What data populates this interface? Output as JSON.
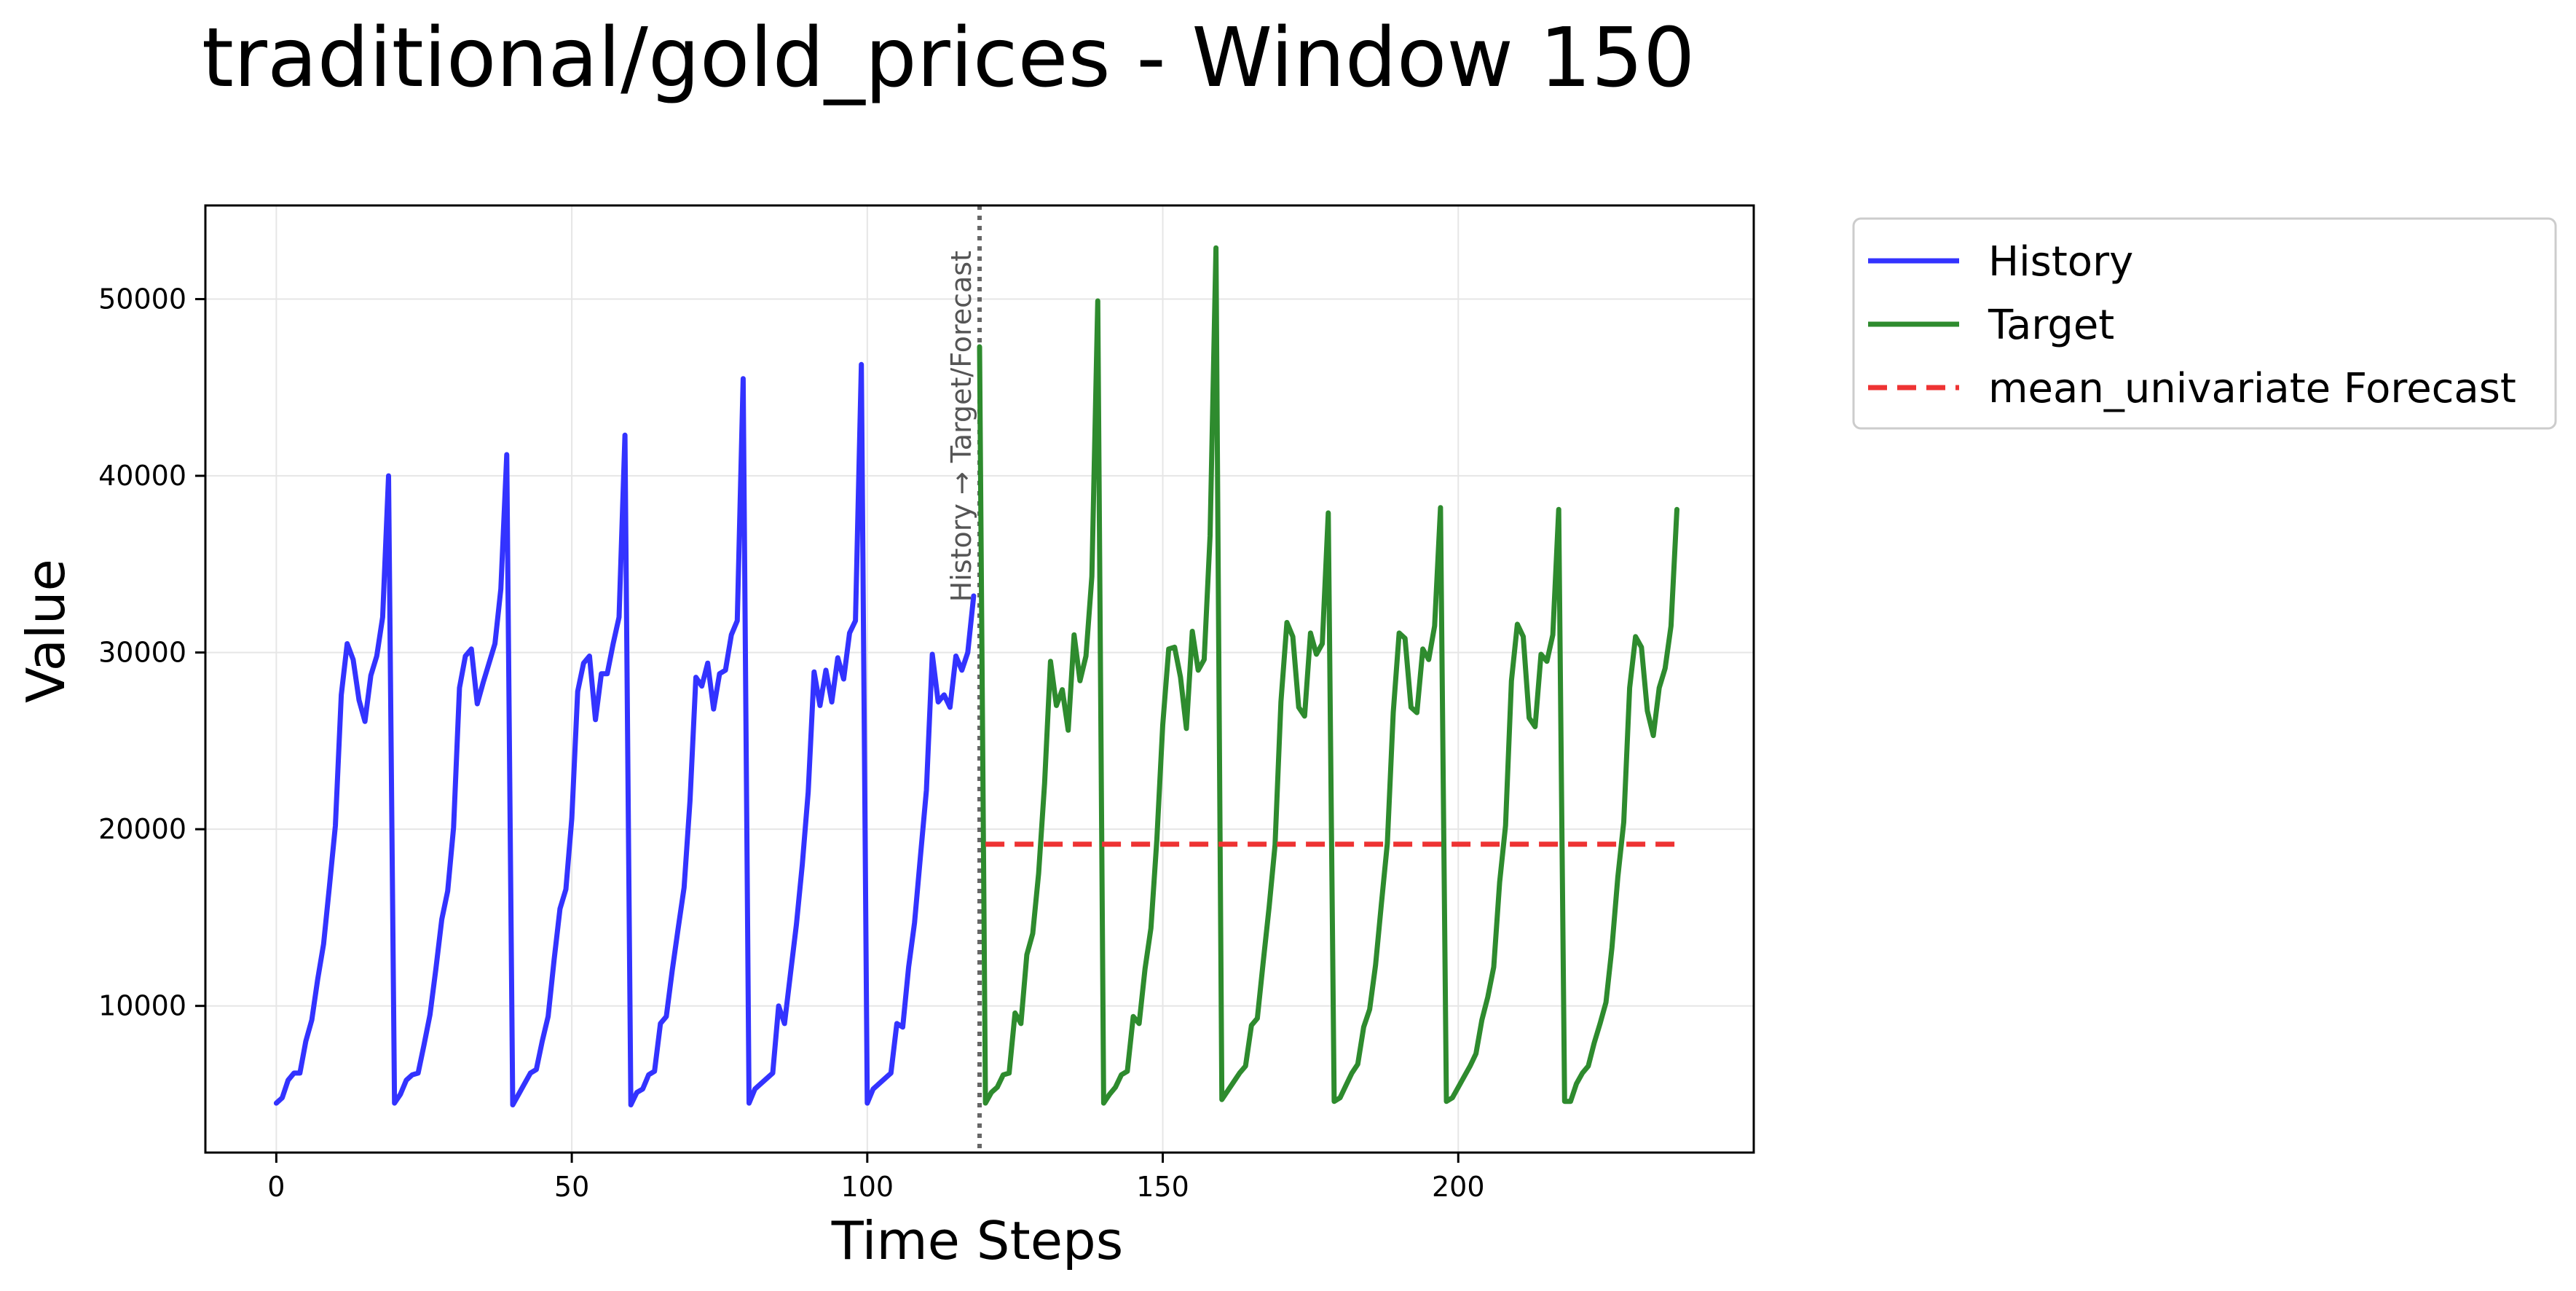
{
  "chart_data": {
    "type": "line",
    "title": "traditional/gold_prices - Window 150",
    "xlabel": "Time Steps",
    "ylabel": "Value",
    "xlim": [
      -12,
      250
    ],
    "ylim": [
      1700,
      55300
    ],
    "xticks": [
      0,
      50,
      100,
      150,
      200
    ],
    "yticks": [
      10000,
      20000,
      30000,
      40000,
      50000
    ],
    "grid": true,
    "legend_position": "outside right, top",
    "divider": {
      "x": 119,
      "label": "History → Target/Forecast",
      "color": "#666666"
    },
    "series": [
      {
        "name": "History",
        "color": "#3333ff",
        "x_start": 0,
        "values": [
          4500,
          4800,
          5800,
          6200,
          6200,
          8000,
          9200,
          11500,
          13500,
          16800,
          20200,
          27600,
          30500,
          29600,
          27300,
          26100,
          28700,
          29800,
          32000,
          40000,
          4500,
          5000,
          5800,
          6100,
          6200,
          7800,
          9500,
          12100,
          14900,
          16500,
          20100,
          28000,
          29800,
          30200,
          27100,
          28300,
          29400,
          30500,
          33600,
          41200,
          4400,
          5000,
          5600,
          6200,
          6400,
          8000,
          9400,
          12600,
          15500,
          16600,
          20600,
          27800,
          29400,
          29800,
          26200,
          28800,
          28800,
          30500,
          32000,
          42300,
          4400,
          5100,
          5300,
          6100,
          6300,
          9000,
          9400,
          12000,
          14400,
          16700,
          21600,
          28600,
          28100,
          29400,
          26800,
          28800,
          29000,
          31000,
          31800,
          45500,
          4500,
          5300,
          5600,
          5900,
          6200,
          10000,
          9000,
          11800,
          14600,
          18000,
          22100,
          28900,
          27000,
          29000,
          27200,
          29700,
          28500,
          31100,
          31800,
          46300,
          4500,
          5300,
          5600,
          5900,
          6200,
          9000,
          8800,
          12200,
          14700,
          18500,
          22200,
          29900,
          27200,
          27600,
          26900,
          29800,
          29000,
          30000,
          33200
        ]
      },
      {
        "name": "Target",
        "color": "#2e8b2e",
        "x_start": 119,
        "values": [
          47300,
          4500,
          5100,
          5400,
          6100,
          6200,
          9600,
          9000,
          12900,
          14100,
          17500,
          22600,
          29500,
          27000,
          27900,
          25600,
          31000,
          28400,
          29800,
          34300,
          49900,
          4500,
          5000,
          5400,
          6100,
          6300,
          9400,
          9000,
          12100,
          14400,
          19400,
          25900,
          30200,
          30300,
          28600,
          25700,
          31200,
          29000,
          29600,
          36600,
          52900,
          4700,
          5200,
          5700,
          6200,
          6600,
          8900,
          9300,
          12500,
          15600,
          19100,
          27200,
          31700,
          30900,
          26900,
          26400,
          31100,
          29900,
          30500,
          37900,
          4600,
          4800,
          5500,
          6200,
          6700,
          8800,
          9800,
          12300,
          15800,
          19200,
          26600,
          31100,
          30800,
          26900,
          26600,
          30200,
          29600,
          31500,
          38200,
          4600,
          4800,
          5400,
          6000,
          6600,
          7300,
          9200,
          10500,
          12200,
          17000,
          20200,
          28400,
          31600,
          30900,
          26300,
          25800,
          29900,
          29500,
          31000,
          38100,
          4600,
          4600,
          5600,
          6200,
          6600,
          7900,
          9000,
          10200,
          13300,
          17300,
          20400,
          28000,
          30900,
          30300,
          26700,
          25300,
          28000,
          29100,
          31500,
          38100
        ]
      },
      {
        "name": "mean_univariate Forecast",
        "color": "#ee3333",
        "style": "dashed",
        "x": [
          120,
          237
        ],
        "values": [
          19150,
          19150
        ]
      }
    ]
  }
}
